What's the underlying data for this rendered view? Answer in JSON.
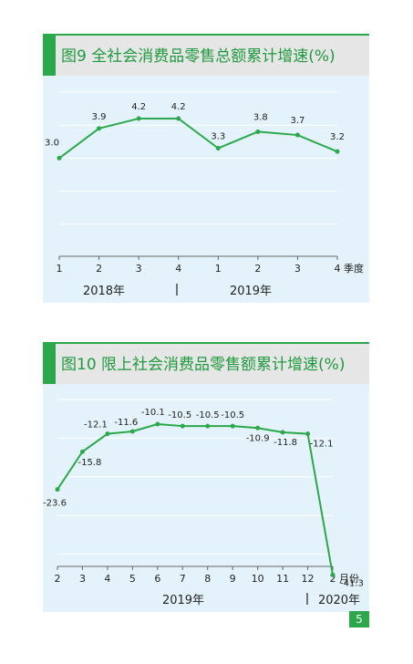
{
  "colors": {
    "accent": "#2aa84a",
    "line": "#2aa84a",
    "header_bg": "#e6e6e6",
    "plot_bg": "#e4f3fb"
  },
  "page_number": "5",
  "chart_data": [
    {
      "type": "line",
      "title": "图9   全社会消费品零售总额累计增速(%)",
      "categories": [
        "1",
        "2",
        "3",
        "4",
        "1",
        "2",
        "3",
        "4"
      ],
      "x_unit": "季度",
      "values": [
        3.0,
        3.9,
        4.2,
        4.2,
        3.3,
        3.8,
        3.7,
        3.2
      ],
      "value_labels": [
        "3.0",
        "3.9",
        "4.2",
        "4.2",
        "3.3",
        "3.8",
        "3.7",
        "3.2"
      ],
      "year_groups": [
        "2018年",
        "2019年"
      ],
      "ylim": [
        0,
        5
      ],
      "grid": true
    },
    {
      "type": "line",
      "title": "图10 限上社会消费品零售额累计增速(%)",
      "categories": [
        "2",
        "3",
        "4",
        "5",
        "6",
        "7",
        "8",
        "9",
        "10",
        "11",
        "12",
        "2"
      ],
      "x_unit": "月份",
      "values": [
        -23.6,
        -15.8,
        -12.1,
        -11.6,
        -10.1,
        -10.5,
        -10.5,
        -10.5,
        -10.9,
        -11.8,
        -12.1,
        -41.3
      ],
      "value_labels": [
        "-23.6",
        "-15.8",
        "-12.1",
        "-11.6",
        "-10.1",
        "-10.5",
        "-10.5",
        "-10.5",
        "-10.9",
        "-11.8",
        "-12.1",
        "-41.3"
      ],
      "year_groups": [
        "2019年",
        "2020年"
      ],
      "ylim": [
        -45,
        -5
      ],
      "grid": true
    }
  ]
}
